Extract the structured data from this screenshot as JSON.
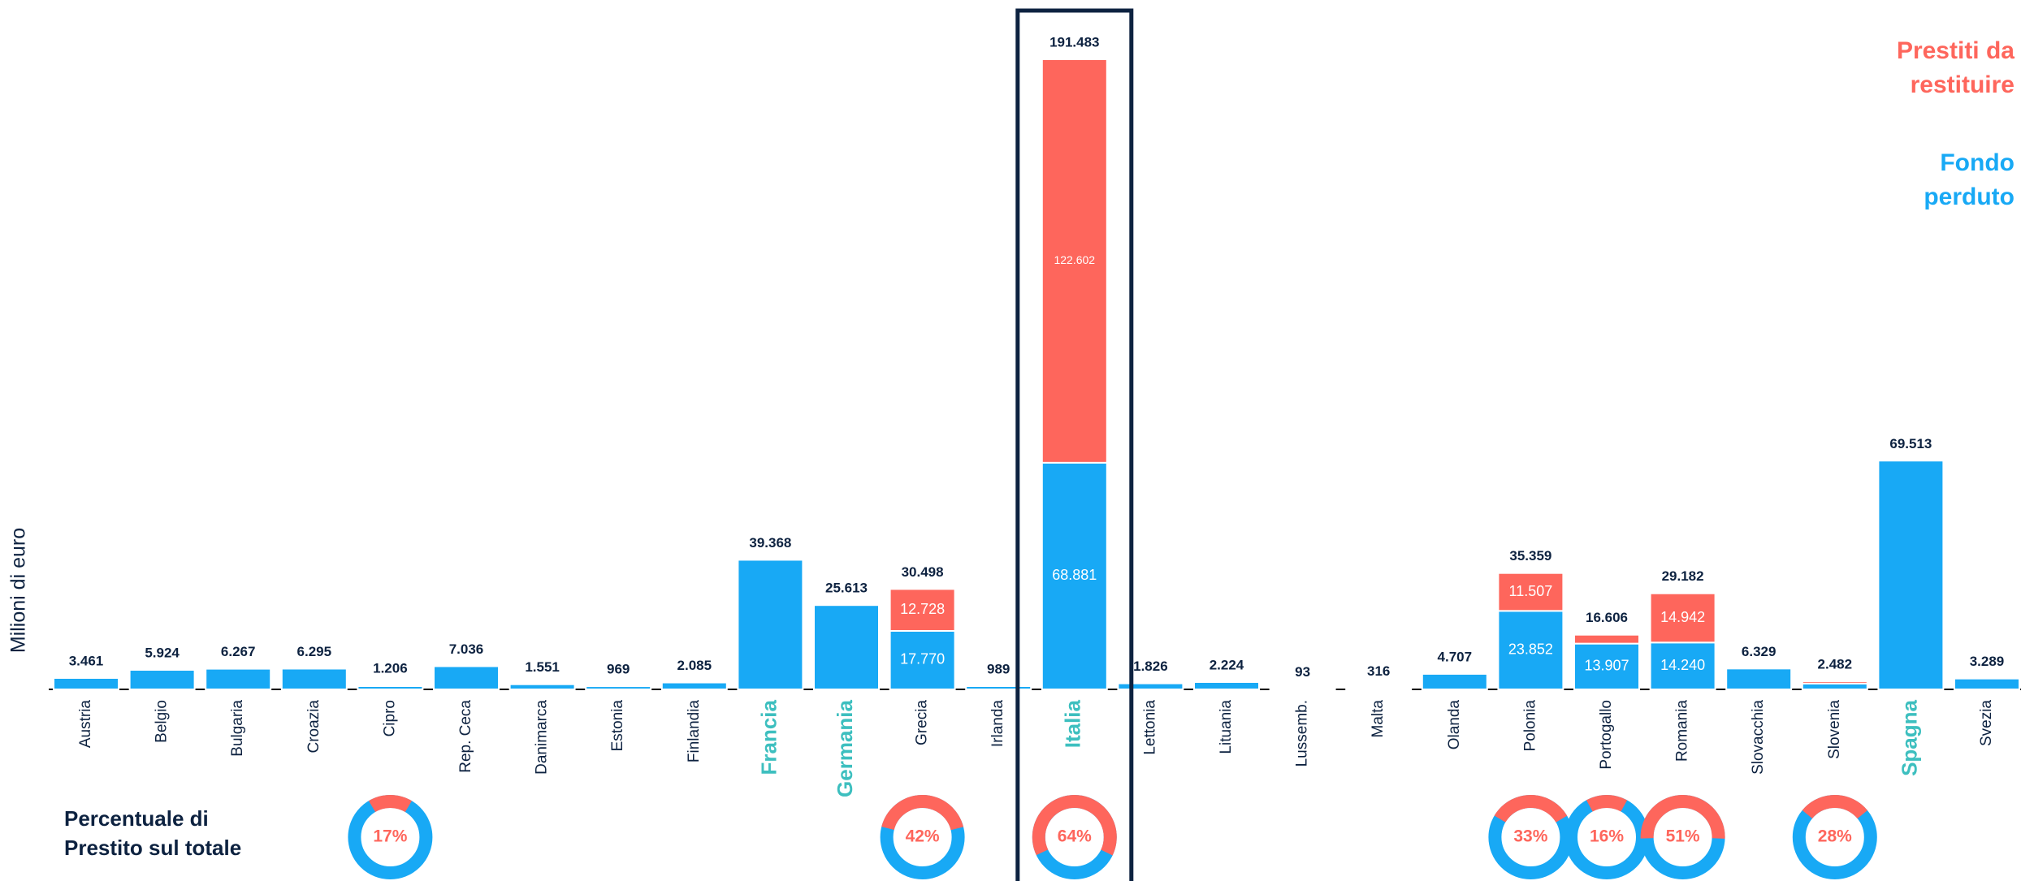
{
  "chart_data": {
    "type": "bar",
    "y_label": "Milioni di euro",
    "categories": [
      "Austria",
      "Belgio",
      "Bulgaria",
      "Croazia",
      "Cipro",
      "Rep. Ceca",
      "Danimarca",
      "Estonia",
      "Finlandia",
      "Francia",
      "Germania",
      "Grecia",
      "Irlanda",
      "Italia",
      "Lettonia",
      "Lituania",
      "Lussemb.",
      "Malta",
      "Olanda",
      "Polonia",
      "Portogallo",
      "Romania",
      "Slovacchia",
      "Slovenia",
      "Spagna",
      "Svezia"
    ],
    "series": [
      {
        "name": "Fondo perduto",
        "color": "#18a9f5",
        "values": [
          3461,
          5924,
          6267,
          6295,
          1006,
          7036,
          1551,
          969,
          2085,
          39368,
          25613,
          17770,
          989,
          68881,
          1826,
          2224,
          93,
          316,
          4707,
          23852,
          13907,
          14240,
          6329,
          1777,
          69513,
          3289
        ],
        "value_labels": [
          null,
          null,
          null,
          null,
          null,
          null,
          null,
          null,
          null,
          null,
          null,
          "17.770",
          null,
          "68.881",
          null,
          null,
          null,
          null,
          null,
          "23.852",
          "13.907",
          "14.240",
          null,
          null,
          null,
          null
        ]
      },
      {
        "name": "Prestiti da restituire",
        "color": "#fe665c",
        "values": [
          null,
          null,
          null,
          null,
          200,
          null,
          null,
          null,
          null,
          null,
          null,
          12728,
          null,
          122602,
          null,
          null,
          null,
          null,
          null,
          11507,
          2699,
          14942,
          null,
          705,
          null,
          null
        ],
        "value_labels": [
          null,
          null,
          null,
          null,
          null,
          null,
          null,
          null,
          null,
          null,
          null,
          "12.728",
          null,
          "122.602",
          null,
          null,
          null,
          null,
          null,
          "11.507",
          null,
          "14.942",
          null,
          null,
          null,
          null
        ]
      }
    ],
    "total_values": [
      3461,
      5924,
      6267,
      6295,
      1206,
      7036,
      1551,
      969,
      2085,
      39368,
      25613,
      30498,
      989,
      191483,
      1826,
      2224,
      93,
      316,
      4707,
      35359,
      16606,
      29182,
      6329,
      2482,
      69513,
      3289
    ],
    "total_labels": [
      "3.461",
      "5.924",
      "6.267",
      "6.295",
      "1.206",
      "7.036",
      "1.551",
      "969",
      "2.085",
      "39.368",
      "25.613",
      "30.498",
      "989",
      "191.483",
      "1.826",
      "2.224",
      "93",
      "316",
      "4.707",
      "35.359",
      "16.606",
      "29.182",
      "6.329",
      "2.482",
      "69.513",
      "3.289"
    ],
    "highlight_indices": [
      9,
      10,
      13,
      24
    ],
    "highlight_color": "#3dbfbf",
    "boxed_index": 13,
    "loan_share": {
      "title": "Percentuale di Prestito sul totale",
      "values": [
        null,
        null,
        null,
        null,
        17,
        null,
        null,
        null,
        null,
        null,
        null,
        42,
        null,
        64,
        null,
        null,
        null,
        null,
        null,
        33,
        16,
        51,
        null,
        28,
        null,
        null
      ],
      "value_labels": [
        null,
        null,
        null,
        null,
        "17%",
        null,
        null,
        null,
        null,
        null,
        null,
        "42%",
        null,
        "64%",
        null,
        null,
        null,
        null,
        null,
        "33%",
        "16%",
        "51%",
        null,
        "28%",
        null,
        null
      ]
    }
  }
}
